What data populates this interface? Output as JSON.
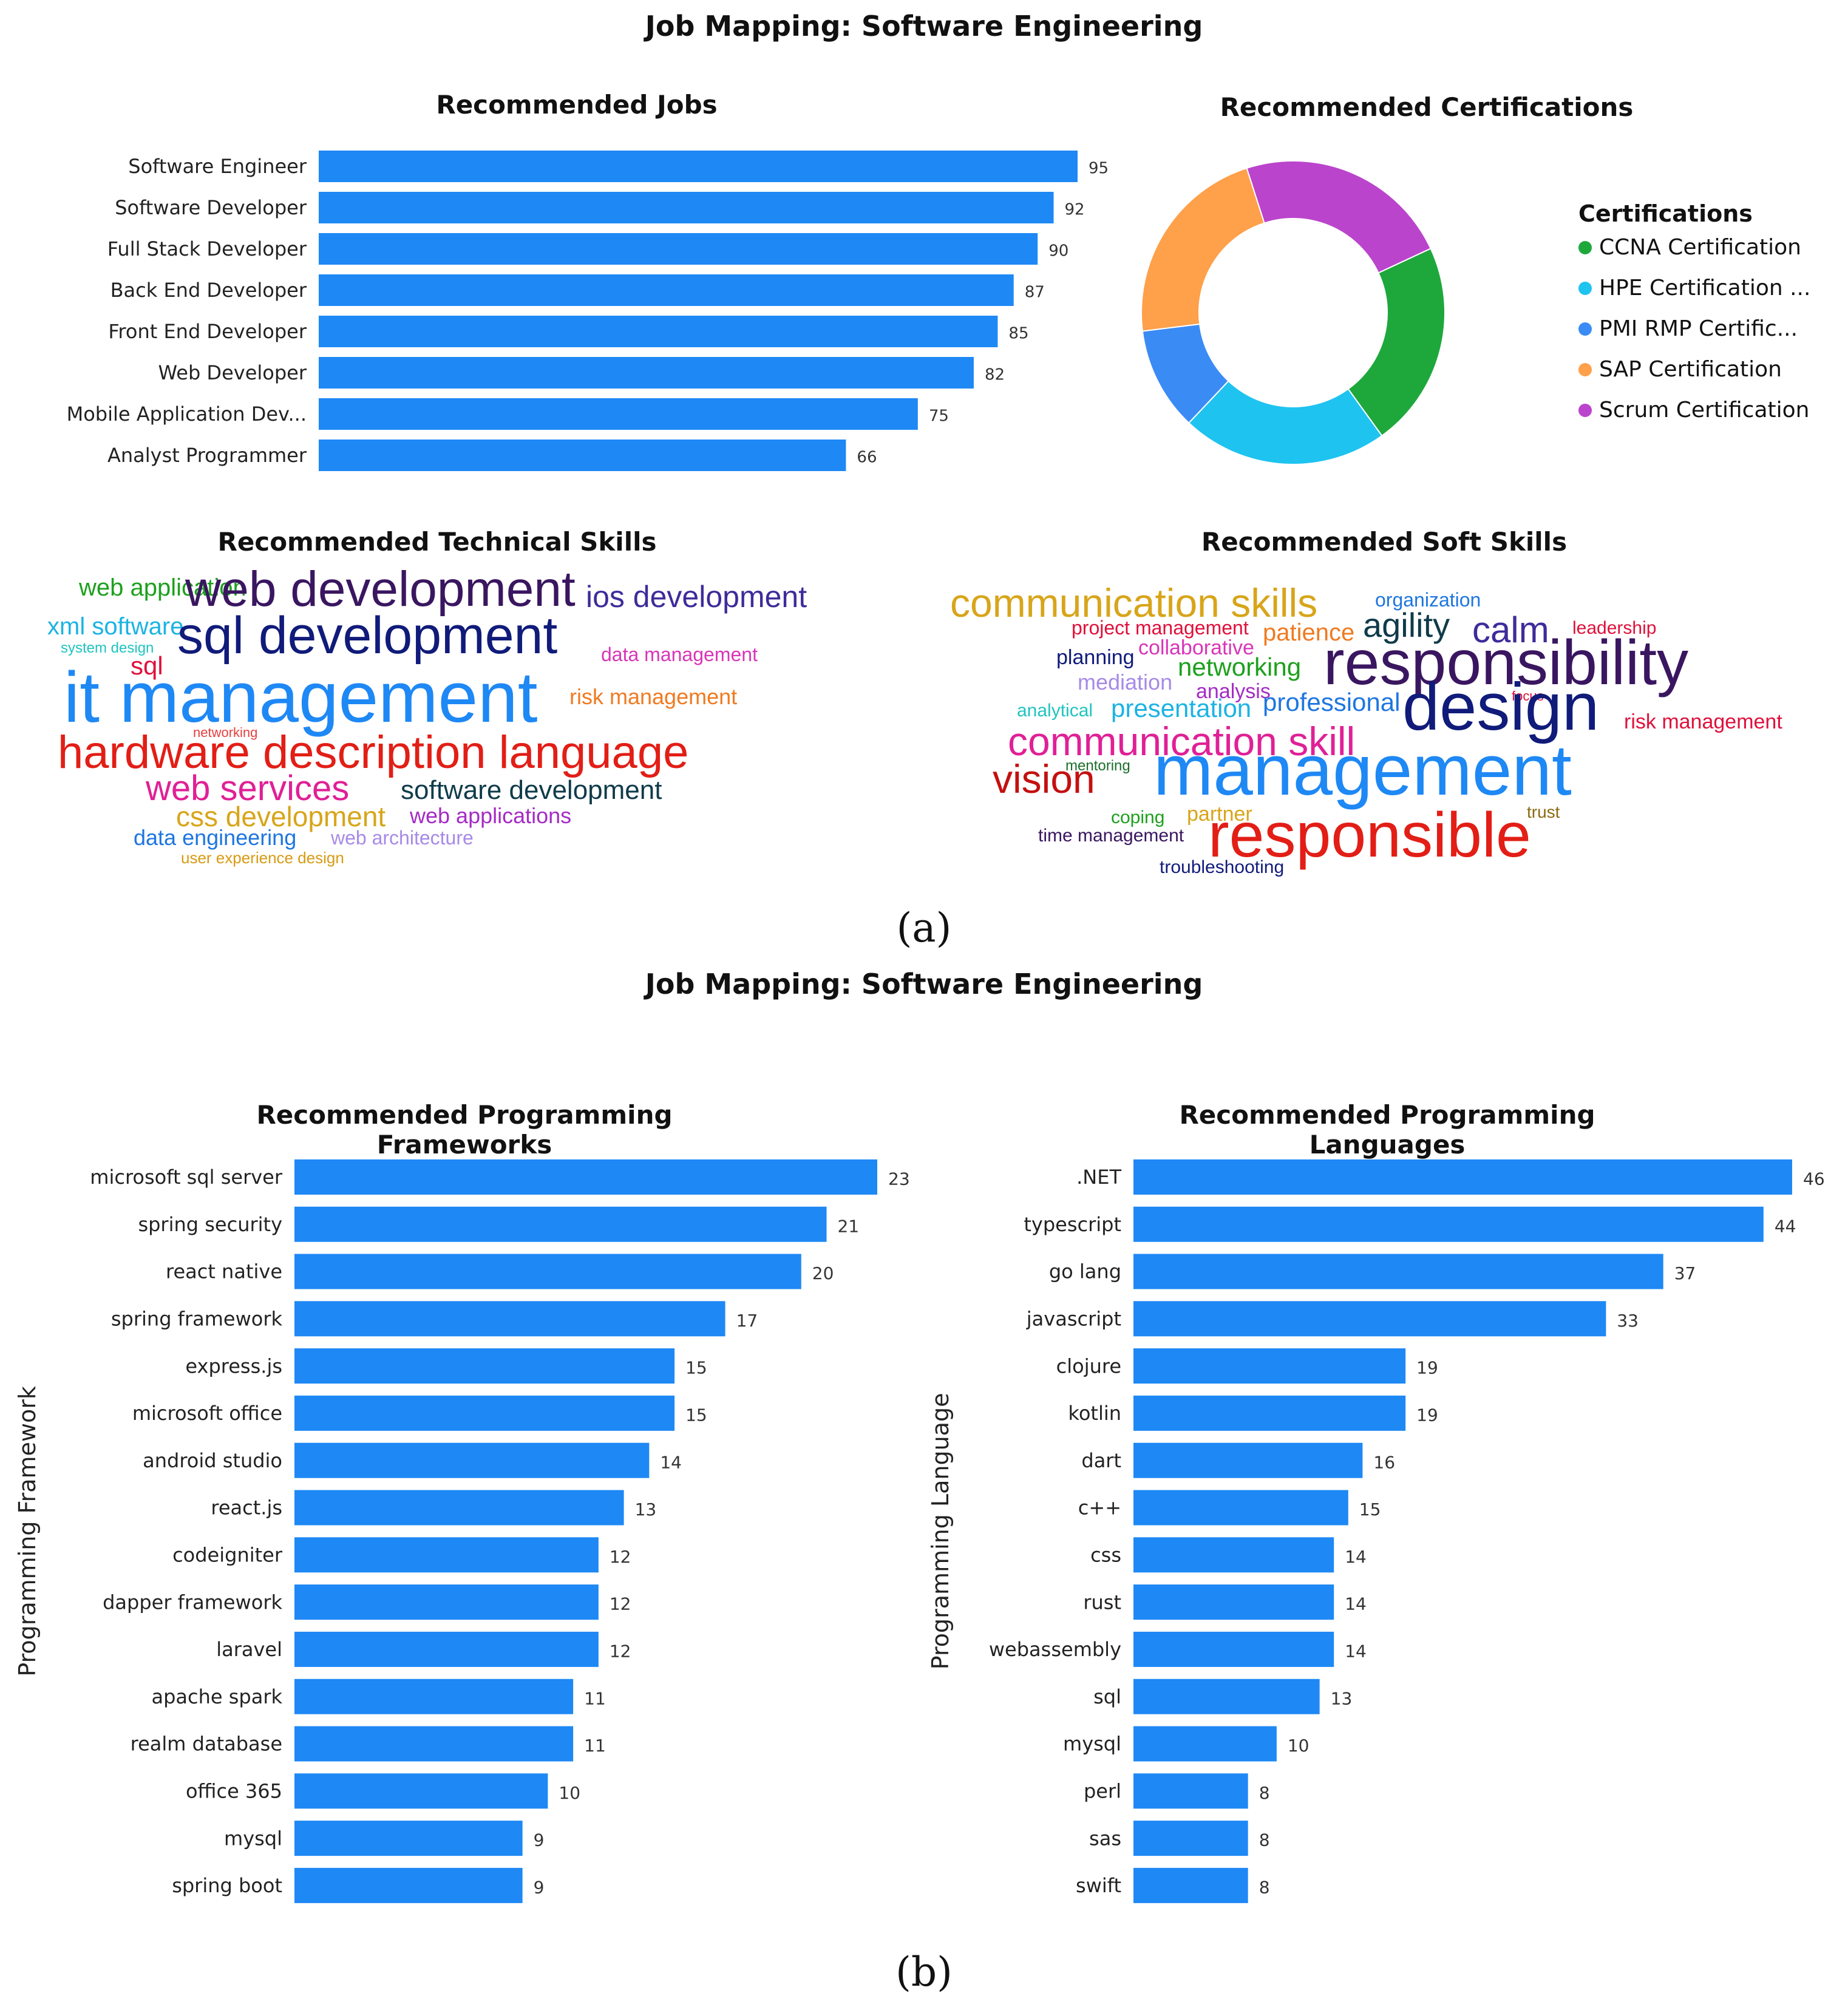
{
  "section_a": {
    "title": "Job Mapping: Software Engineering",
    "label": "(a)"
  },
  "section_b": {
    "title": "Job Mapping: Software Engineering",
    "label": "(b)"
  },
  "chart_data": [
    {
      "id": "jobs",
      "type": "bar",
      "orientation": "horizontal",
      "title": "Recommended Jobs",
      "categories": [
        "Software Engineer",
        "Software Developer",
        "Full Stack Developer",
        "Back End Developer",
        "Front End Developer",
        "Web Developer",
        "Mobile Application Dev...",
        "Analyst Programmer"
      ],
      "values": [
        95,
        92,
        90,
        87,
        85,
        82,
        75,
        66
      ],
      "xlim": [
        0,
        95
      ],
      "color": "#1E88F5"
    },
    {
      "id": "certs",
      "type": "pie",
      "donut": true,
      "title": "Recommended Certifications",
      "legend_title": "Certifications",
      "legend_position": "right",
      "labels": [
        "CCNA Certification",
        "HPE Certification ...",
        "PMI RMP Certific...",
        "SAP Certification",
        "Scrum Certification"
      ],
      "values": [
        22,
        22,
        11,
        22,
        23
      ],
      "colors": [
        "#1EA83C",
        "#1EC3F0",
        "#3B8BF5",
        "#FFA04A",
        "#BB44CC"
      ]
    },
    {
      "id": "tech_skills",
      "type": "wordcloud",
      "title": "Recommended Technical Skills",
      "words": [
        "web application",
        "web development",
        "ios development",
        "xml software",
        "system design",
        "sql",
        "sql development",
        "data management",
        "it management",
        "risk management",
        "networking",
        "hardware description language",
        "web services",
        "software development",
        "css development",
        "web applications",
        "data engineering",
        "web architecture",
        "user experience design"
      ]
    },
    {
      "id": "soft_skills",
      "type": "wordcloud",
      "title": "Recommended Soft Skills",
      "words": [
        "communication skills",
        "organization",
        "project management",
        "patience",
        "agility",
        "calm",
        "leadership",
        "collaborative",
        "planning",
        "networking",
        "responsibility",
        "mediation",
        "analysis",
        "focus",
        "analytical",
        "presentation",
        "professional",
        "design",
        "communication skill",
        "risk management",
        "vision",
        "mentoring",
        "management",
        "coping",
        "partner",
        "trust",
        "time management",
        "responsible",
        "troubleshooting"
      ]
    },
    {
      "id": "frameworks",
      "type": "bar",
      "orientation": "horizontal",
      "title": "Recommended Programming Frameworks",
      "ylabel": "Programming Framework",
      "categories": [
        "microsoft sql server",
        "spring security",
        "react native",
        "spring framework",
        "express.js",
        "microsoft office",
        "android studio",
        "react.js",
        "codeigniter",
        "dapper framework",
        "laravel",
        "apache spark",
        "realm database",
        "office 365",
        "mysql",
        "spring boot"
      ],
      "values": [
        23,
        21,
        20,
        17,
        15,
        15,
        14,
        13,
        12,
        12,
        12,
        11,
        11,
        10,
        9,
        9
      ],
      "xlim": [
        0,
        23
      ],
      "color": "#1E88F5"
    },
    {
      "id": "languages",
      "type": "bar",
      "orientation": "horizontal",
      "title": "Recommended Programming Languages",
      "ylabel": "Programming Language",
      "categories": [
        ".NET",
        "typescript",
        "go lang",
        "javascript",
        "clojure",
        "kotlin",
        "dart",
        "c++",
        "css",
        "rust",
        "webassembly",
        "sql",
        "mysql",
        "perl",
        "sas",
        "swift"
      ],
      "values": [
        46,
        44,
        37,
        33,
        19,
        19,
        16,
        15,
        14,
        14,
        14,
        13,
        10,
        8,
        8,
        8
      ],
      "xlim": [
        0,
        46
      ],
      "color": "#1E88F5"
    }
  ]
}
